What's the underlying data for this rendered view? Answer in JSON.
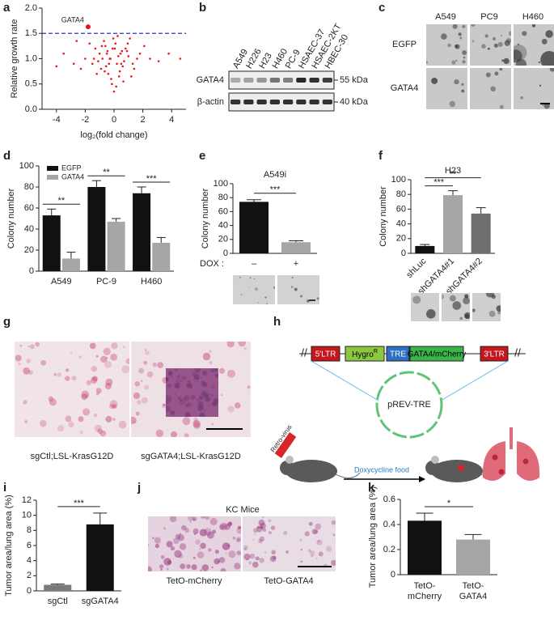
{
  "panel_labels": [
    "a",
    "b",
    "c",
    "d",
    "e",
    "f",
    "g",
    "h",
    "i",
    "j",
    "k"
  ],
  "chart_data": [
    {
      "type": "scatter",
      "xlabel": "log₂(fold change)",
      "ylabel": "Relative growth rate",
      "x": [
        -0.3,
        0.2,
        -0.5,
        0.6,
        -1.1,
        1.0,
        -0.1,
        0.4,
        -0.8,
        0.9,
        -1.5,
        1.4,
        -0.2,
        0.1,
        -0.6,
        0.7,
        -2.0,
        1.8,
        -0.4,
        0.3,
        -1.3,
        1.2,
        -0.05,
        0.5,
        -0.9,
        2.5,
        -2.8,
        0.0,
        -0.7,
        0.8,
        -3.5,
        3.1,
        -0.15,
        0.25,
        -1.0,
        1.6,
        -2.3,
        2.1,
        -0.35,
        0.45,
        -0.55,
        0.65,
        -1.7,
        1.1,
        -4.0,
        4.6,
        -0.25,
        0.15,
        -1.2,
        0.95,
        -0.45,
        0.35,
        -0.85,
        0.55,
        -2.6,
        3.8,
        -0.65,
        0.05,
        -1.4,
        1.3
      ],
      "values": [
        1.0,
        0.9,
        1.1,
        0.85,
        0.95,
        1.05,
        1.2,
        0.75,
        1.0,
        1.15,
        0.9,
        0.8,
        0.6,
        1.3,
        1.25,
        0.95,
        1.0,
        1.1,
        0.7,
        1.05,
        1.2,
        0.65,
        1.4,
        0.9,
        0.8,
        1.0,
        0.9,
        0.35,
        1.35,
        1.2,
        1.1,
        0.95,
        0.5,
        1.45,
        1.1,
        1.0,
        0.8,
        1.25,
        0.9,
        1.1,
        0.85,
        0.55,
        1.3,
        1.4,
        0.85,
        1.0,
        1.0,
        0.45,
        0.7,
        1.3,
        1.15,
        0.65,
        1.25,
        1.15,
        1.35,
        1.1,
        0.75,
        1.2,
        1.0,
        0.9
      ],
      "color": "#e8141b",
      "xlim": [
        -5,
        5
      ],
      "xticks": [
        -4,
        -2,
        0,
        2,
        4
      ],
      "ylim": [
        0,
        2
      ],
      "yticks": [
        {
          "value": 0,
          "label": "0.0"
        },
        {
          "value": 0.5,
          "label": "0.5"
        },
        {
          "value": 1,
          "label": "1.0"
        },
        {
          "value": 1.5,
          "label": "1.5"
        },
        {
          "value": 2,
          "label": "2.0"
        }
      ],
      "threshold": 1.5,
      "threshold_color": "#2233cc",
      "highlight": {
        "label": "GATA4",
        "x": -1.8,
        "y": 1.63
      }
    },
    {
      "type": "bar",
      "ylabel": "Colony number",
      "categories": [
        "A549",
        "PC-9",
        "H460"
      ],
      "series": [
        {
          "name": "EGFP",
          "color": "#111111",
          "values": [
            53,
            80,
            74
          ],
          "errors": [
            6,
            6,
            6
          ]
        },
        {
          "name": "GATA4",
          "color": "#a6a6a6",
          "values": [
            12,
            47,
            27
          ],
          "errors": [
            6,
            3,
            5
          ]
        }
      ],
      "ylim": [
        0,
        100
      ],
      "yticks": [
        0,
        20,
        40,
        60,
        80,
        100
      ],
      "significance": [
        "**",
        "**",
        "***"
      ]
    },
    {
      "type": "bar",
      "title": "A549i",
      "ylabel": "Colony number",
      "xlabel": "DOX :",
      "categories": [
        "–",
        "+"
      ],
      "series": [
        {
          "colors": [
            "#111111",
            "#a6a6a6"
          ],
          "values": [
            74,
            16
          ],
          "errors": [
            3,
            2
          ]
        }
      ],
      "ylim": [
        0,
        100
      ],
      "yticks": [
        0,
        20,
        40,
        60,
        80,
        100
      ],
      "significance": "***"
    },
    {
      "type": "bar",
      "title": "H23",
      "ylabel": "Colony number",
      "categories": [
        "shLuc",
        "shGATA4#1",
        "shGATA4#2"
      ],
      "series": [
        {
          "colors": [
            "#111111",
            "#a6a6a6",
            "#6e6e6e"
          ],
          "values": [
            10,
            79,
            54
          ],
          "errors": [
            2,
            6,
            8
          ]
        }
      ],
      "ylim": [
        0,
        100
      ],
      "yticks": [
        0,
        20,
        40,
        60,
        80,
        100
      ],
      "significance": [
        "***",
        "**"
      ]
    },
    {
      "type": "bar",
      "ylabel": "Tumor area/lung area (%)",
      "categories": [
        "sgCtl",
        "sgGATA4"
      ],
      "series": [
        {
          "colors": [
            "#7a7a7a",
            "#111111"
          ],
          "values": [
            0.8,
            8.8
          ],
          "errors": [
            0.1,
            1.5
          ]
        }
      ],
      "ylim": [
        0,
        12
      ],
      "yticks": [
        0,
        2,
        4,
        6,
        8,
        10,
        12
      ],
      "significance": "***"
    },
    {
      "type": "bar",
      "ylabel": "Tumor area/lung area (%)",
      "categories": [
        "TetO-mCherry",
        "TetO-GATA4"
      ],
      "series": [
        {
          "colors": [
            "#111111",
            "#a6a6a6"
          ],
          "values": [
            0.43,
            0.28
          ],
          "errors": [
            0.06,
            0.04
          ]
        }
      ],
      "ylim": [
        0,
        0.6
      ],
      "yticks": [
        0,
        0.2,
        0.4,
        0.6
      ],
      "significance": "*"
    }
  ],
  "blot": {
    "lanes": [
      "A549",
      "H226",
      "H23",
      "H460",
      "PC-9",
      "HSAEC-37",
      "HSAEC-2KT",
      "HBEC-30"
    ],
    "rows": [
      "GATA4",
      "β-actin"
    ],
    "markers": [
      "55 kDa",
      "40 kDa"
    ]
  },
  "colony_images": {
    "columns": [
      "A549",
      "PC9",
      "H460"
    ],
    "rows": [
      "EGFP",
      "GATA4"
    ]
  },
  "tissue_images": {
    "captions": [
      "sgCtl;LSL-KrasG12D",
      "sgGATA4;LSL-KrasG12D"
    ]
  },
  "kc_images": {
    "title": "KC Mice",
    "captions": [
      "TetO-mCherry",
      "TetO-GATA4"
    ]
  },
  "construct": {
    "elements": [
      "5'LTR",
      {
        "text": "Hygro",
        "sup": "R"
      },
      "TRE",
      "GATA4/mCherry",
      "3'LTR"
    ],
    "plasmid": "pREV-TRE",
    "virus": "Retro-virus",
    "treatment": "Doxycycline food"
  }
}
